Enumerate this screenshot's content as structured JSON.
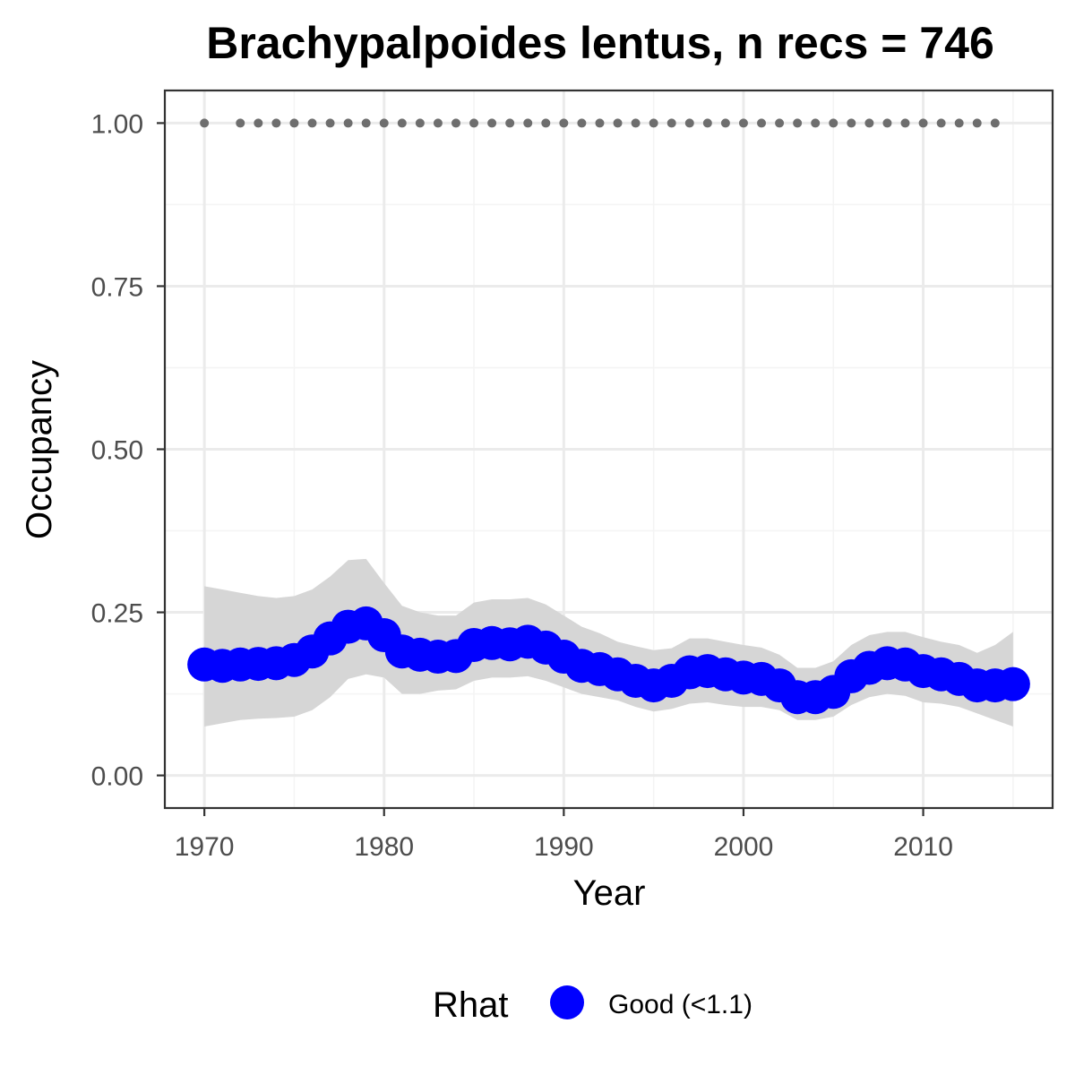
{
  "chart_data": {
    "type": "line",
    "title": "Brachypalpoides lentus, n recs = 746",
    "xlabel": "Year",
    "ylabel": "Occupancy",
    "xlim": [
      1967.8,
      2017.2
    ],
    "ylim": [
      -0.05,
      1.05
    ],
    "x_ticks": [
      1970,
      1980,
      1990,
      2000,
      2010
    ],
    "x_tick_labels": [
      "1970",
      "1980",
      "1990",
      "2000",
      "2010"
    ],
    "x_minor_ticks": [
      1975,
      1985,
      1995,
      2005,
      2015
    ],
    "y_ticks": [
      0,
      0.25,
      0.5,
      0.75,
      1
    ],
    "y_tick_labels": [
      "0.00",
      "0.25",
      "0.50",
      "0.75",
      "1.00"
    ],
    "y_minor_ticks": [
      0.125,
      0.375,
      0.625,
      0.875
    ],
    "grid": true,
    "years": [
      1970,
      1971,
      1972,
      1973,
      1974,
      1975,
      1976,
      1977,
      1978,
      1979,
      1980,
      1981,
      1982,
      1983,
      1984,
      1985,
      1986,
      1987,
      1988,
      1989,
      1990,
      1991,
      1992,
      1993,
      1994,
      1995,
      1996,
      1997,
      1998,
      1999,
      2000,
      2001,
      2002,
      2003,
      2004,
      2005,
      2006,
      2007,
      2008,
      2009,
      2010,
      2011,
      2012,
      2013,
      2014,
      2015
    ],
    "occupancy": [
      0.17,
      0.168,
      0.17,
      0.171,
      0.172,
      0.177,
      0.19,
      0.21,
      0.228,
      0.233,
      0.215,
      0.19,
      0.185,
      0.182,
      0.183,
      0.2,
      0.203,
      0.201,
      0.205,
      0.196,
      0.182,
      0.168,
      0.163,
      0.155,
      0.145,
      0.138,
      0.145,
      0.158,
      0.16,
      0.155,
      0.15,
      0.148,
      0.138,
      0.12,
      0.12,
      0.128,
      0.152,
      0.165,
      0.172,
      0.17,
      0.16,
      0.155,
      0.148,
      0.138,
      0.138,
      0.14
    ],
    "lower": [
      0.075,
      0.08,
      0.085,
      0.087,
      0.088,
      0.09,
      0.1,
      0.12,
      0.148,
      0.155,
      0.15,
      0.125,
      0.125,
      0.13,
      0.132,
      0.145,
      0.15,
      0.15,
      0.152,
      0.145,
      0.135,
      0.125,
      0.12,
      0.115,
      0.105,
      0.098,
      0.102,
      0.11,
      0.112,
      0.108,
      0.105,
      0.105,
      0.1,
      0.085,
      0.085,
      0.09,
      0.108,
      0.12,
      0.125,
      0.122,
      0.112,
      0.11,
      0.105,
      0.095,
      0.085,
      0.075
    ],
    "upper": [
      0.29,
      0.285,
      0.28,
      0.275,
      0.272,
      0.275,
      0.285,
      0.305,
      0.33,
      0.332,
      0.295,
      0.26,
      0.25,
      0.245,
      0.245,
      0.265,
      0.27,
      0.27,
      0.272,
      0.262,
      0.245,
      0.228,
      0.218,
      0.205,
      0.198,
      0.192,
      0.195,
      0.21,
      0.21,
      0.205,
      0.2,
      0.196,
      0.185,
      0.165,
      0.165,
      0.175,
      0.2,
      0.215,
      0.22,
      0.22,
      0.212,
      0.205,
      0.2,
      0.188,
      0.2,
      0.22
    ],
    "record_years": [
      1970,
      1972,
      1973,
      1974,
      1975,
      1976,
      1977,
      1978,
      1979,
      1980,
      1981,
      1982,
      1983,
      1984,
      1985,
      1986,
      1987,
      1988,
      1989,
      1990,
      1991,
      1992,
      1993,
      1994,
      1995,
      1996,
      1997,
      1998,
      1999,
      2000,
      2001,
      2002,
      2003,
      2004,
      2005,
      2006,
      2007,
      2008,
      2009,
      2010,
      2011,
      2012,
      2013,
      2014
    ],
    "record_value": 1.0,
    "legend": {
      "title": "Rhat",
      "entries": [
        {
          "label": "Good (<1.1)",
          "color": "#0000ff"
        }
      ]
    },
    "colors": {
      "points": "#0000ff",
      "ribbon": "#d6d6d6",
      "records": "#6e6e6e",
      "grid_major": "#ebebeb",
      "grid_minor": "#f4f4f4",
      "panel_border": "#333333",
      "tick_label": "#4d4d4d"
    }
  }
}
